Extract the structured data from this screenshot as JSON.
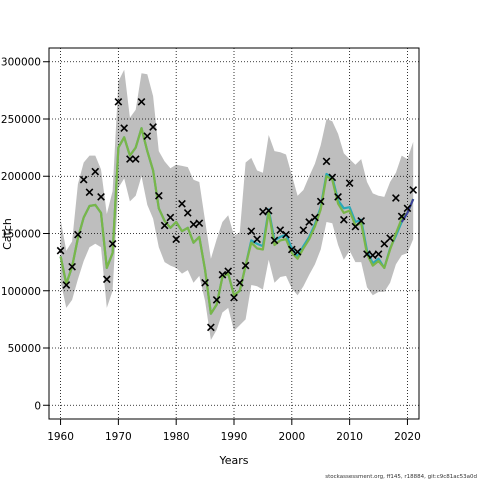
{
  "chart_data": {
    "type": "line",
    "xlabel": "Years",
    "ylabel": "Catch",
    "xlim": [
      1958,
      2022
    ],
    "ylim": [
      -12000,
      312000
    ],
    "x_ticks": [
      1960,
      1970,
      1980,
      1990,
      2000,
      2010,
      2020
    ],
    "y_ticks": [
      0,
      50000,
      100000,
      150000,
      200000,
      250000,
      300000
    ],
    "grid": "dotted",
    "observed_marker": "x",
    "colors": {
      "band": "#bebebe",
      "line_main": "#7ab648",
      "line_alt": "#2aa8b8",
      "line_dark": "#3d3d9e",
      "markers": "#000000"
    },
    "years": [
      1960,
      1961,
      1962,
      1963,
      1964,
      1965,
      1966,
      1967,
      1968,
      1969,
      1970,
      1971,
      1972,
      1973,
      1974,
      1975,
      1976,
      1977,
      1978,
      1979,
      1980,
      1981,
      1982,
      1983,
      1984,
      1985,
      1986,
      1987,
      1988,
      1989,
      1990,
      1991,
      1992,
      1993,
      1994,
      1995,
      1996,
      1997,
      1998,
      1999,
      2000,
      2001,
      2002,
      2003,
      2004,
      2005,
      2006,
      2007,
      2008,
      2009,
      2010,
      2011,
      2012,
      2013,
      2014,
      2015,
      2016,
      2017,
      2018,
      2019,
      2020,
      2021
    ],
    "series": [
      {
        "values": [
          135000,
          105000,
          121000,
          149000,
          197000,
          186000,
          204000,
          182000,
          110000,
          141000,
          265000,
          242000,
          215000,
          215000,
          265000,
          235000,
          243000,
          183000,
          157000,
          164000,
          145000,
          176000,
          168000,
          158000,
          159000,
          107000,
          68000,
          92000,
          114000,
          117000,
          94000,
          107000,
          122000,
          152000,
          145000,
          169000,
          170000,
          144000,
          153000,
          149000,
          136000,
          134000,
          153000,
          160000,
          164000,
          178000,
          213000,
          199000,
          182000,
          162000,
          194000,
          156000,
          161000,
          132000,
          131000,
          132000,
          141000,
          146000,
          181000,
          165000,
          172000,
          188000
        ]
      },
      {
        "values": [
          130000,
          106000,
          121000,
          146000,
          164000,
          174000,
          175000,
          168000,
          120000,
          133000,
          225000,
          234000,
          218000,
          225000,
          242000,
          222000,
          205000,
          172000,
          161000,
          155000,
          160000,
          152000,
          155000,
          142000,
          147000,
          118000,
          80000,
          88000,
          112000,
          115000,
          96000,
          100000,
          122000,
          144000,
          141000,
          139000,
          171000,
          144000,
          147000,
          149000,
          137000,
          130000,
          139000,
          147000,
          158000,
          173000,
          202000,
          199000,
          179000,
          172000,
          173000,
          160000,
          162000,
          135000,
          124000,
          128000,
          120000,
          137000,
          148000,
          160000,
          168000,
          180000
        ]
      },
      {
        "values": [
          130000,
          106000,
          121000,
          146000,
          164000,
          174000,
          175000,
          168000,
          120000,
          133000,
          225000,
          234000,
          218000,
          225000,
          242000,
          222000,
          205000,
          172000,
          161000,
          155000,
          160000,
          152000,
          155000,
          142000,
          147000,
          118000,
          80000,
          88000,
          112000,
          115000,
          96000,
          100000,
          122000,
          142000,
          137000,
          136000,
          169000,
          140000,
          144000,
          145000,
          133000,
          128000,
          137000,
          145000,
          156000,
          171000,
          200000,
          197000,
          176000,
          168000,
          170000,
          157000,
          159000,
          132000,
          122000,
          126000,
          120000,
          136000,
          150000,
          163000,
          168000,
          180000
        ]
      }
    ],
    "upper": [
      162000,
      135000,
      143000,
      193000,
      212000,
      218000,
      218000,
      206000,
      167000,
      187000,
      283000,
      293000,
      251000,
      258000,
      290000,
      289000,
      270000,
      222000,
      213000,
      207000,
      210000,
      209000,
      208000,
      197000,
      195000,
      161000,
      128000,
      145000,
      160000,
      166000,
      148000,
      151000,
      212000,
      216000,
      205000,
      203000,
      236000,
      222000,
      221000,
      219000,
      201000,
      183000,
      188000,
      200000,
      211000,
      227000,
      250000,
      248000,
      237000,
      220000,
      215000,
      210000,
      215000,
      195000,
      185000,
      183000,
      182000,
      195000,
      203000,
      218000,
      215000,
      230000
    ],
    "lower": [
      108000,
      85000,
      92000,
      110000,
      126000,
      138000,
      141000,
      138000,
      85000,
      100000,
      190000,
      198000,
      178000,
      183000,
      200000,
      175000,
      163000,
      138000,
      125000,
      122000,
      120000,
      115000,
      118000,
      107000,
      113000,
      91000,
      57000,
      66000,
      81000,
      85000,
      65000,
      70000,
      75000,
      105000,
      104000,
      101000,
      127000,
      107000,
      112000,
      113000,
      102000,
      96000,
      104000,
      114000,
      123000,
      136000,
      160000,
      159000,
      140000,
      127000,
      135000,
      125000,
      125000,
      103000,
      96000,
      99000,
      99000,
      107000,
      123000,
      131000,
      133000,
      145000
    ]
  },
  "footer": {
    "note": "stockassessment.org, ff145, r18884, git:c9c81ac53a0d"
  }
}
